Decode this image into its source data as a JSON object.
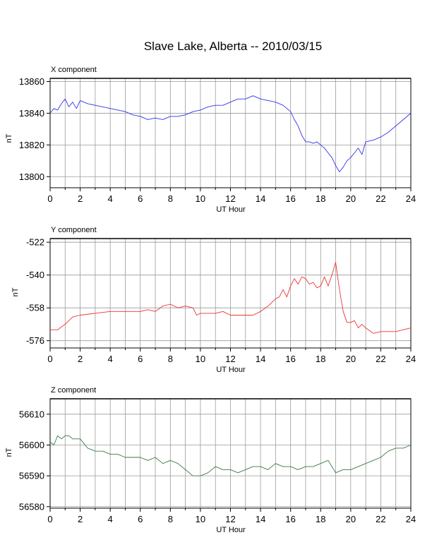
{
  "title": "Slave Lake, Alberta -- 2010/03/15",
  "chart_data": [
    {
      "type": "line",
      "panel_title": "X component",
      "xlabel": "UT Hour",
      "ylabel": "nT",
      "xlim": [
        0,
        24
      ],
      "ylim": [
        13793,
        13862
      ],
      "xticks": [
        0,
        2,
        4,
        6,
        8,
        10,
        12,
        14,
        16,
        18,
        20,
        22,
        24
      ],
      "yticks": [
        13800,
        13820,
        13840,
        13860
      ],
      "grid": true,
      "series_color": "#3333ee",
      "series": [
        {
          "x": [
            0,
            0.25,
            0.5,
            0.75,
            1,
            1.25,
            1.5,
            1.75,
            2,
            2.5,
            3,
            3.5,
            4,
            4.5,
            5,
            5.5,
            6,
            6.5,
            7,
            7.5,
            8,
            8.5,
            9,
            9.5,
            10,
            10.5,
            11,
            11.5,
            12,
            12.5,
            13,
            13.5,
            14,
            14.5,
            15,
            15.5,
            16,
            16.25,
            16.5,
            16.75,
            17,
            17.25,
            17.5,
            17.75,
            18,
            18.25,
            18.5,
            18.75,
            19,
            19.25,
            19.5,
            19.75,
            20,
            20.25,
            20.5,
            20.75,
            21,
            21.5,
            22,
            22.5,
            23,
            23.5,
            24
          ],
          "y": [
            13840,
            13843,
            13842,
            13846,
            13849,
            13844,
            13847,
            13843,
            13848,
            13846,
            13845,
            13844,
            13843,
            13842,
            13841,
            13839,
            13838,
            13836,
            13837,
            13836,
            13838,
            13838,
            13839,
            13841,
            13842,
            13844,
            13845,
            13845,
            13847,
            13849,
            13849,
            13851,
            13849,
            13848,
            13847,
            13845,
            13841,
            13836,
            13832,
            13826,
            13822,
            13822,
            13821,
            13822,
            13820,
            13818,
            13815,
            13812,
            13807,
            13803,
            13806,
            13810,
            13812,
            13815,
            13818,
            13814,
            13822,
            13823,
            13825,
            13828,
            13832,
            13836,
            13840
          ]
        }
      ]
    },
    {
      "type": "line",
      "panel_title": "Y component",
      "xlabel": "UT Hour",
      "ylabel": "nT",
      "xlim": [
        0,
        24
      ],
      "ylim": [
        -580,
        -520
      ],
      "xticks": [
        0,
        2,
        4,
        6,
        8,
        10,
        12,
        14,
        16,
        18,
        20,
        22,
        24
      ],
      "yticks": [
        -522,
        -540,
        -558,
        -576
      ],
      "grid": true,
      "series_color": "#ee3333",
      "series": [
        {
          "x": [
            0,
            0.5,
            1,
            1.5,
            2,
            3,
            4,
            5,
            5.5,
            6,
            6.5,
            7,
            7.5,
            8,
            8.5,
            9,
            9.5,
            9.75,
            10,
            10.5,
            11,
            11.5,
            12,
            12.5,
            13,
            13.5,
            14,
            14.5,
            15,
            15.25,
            15.5,
            15.75,
            16,
            16.25,
            16.5,
            16.75,
            17,
            17.25,
            17.5,
            17.75,
            18,
            18.25,
            18.5,
            18.75,
            19,
            19.25,
            19.5,
            19.75,
            20,
            20.25,
            20.5,
            20.75,
            21,
            21.5,
            22,
            22.5,
            23,
            23.5,
            24
          ],
          "y": [
            -570,
            -570,
            -567,
            -563,
            -562,
            -561,
            -560,
            -560,
            -560,
            -560,
            -559,
            -560,
            -557,
            -556,
            -558,
            -557,
            -558,
            -562,
            -561,
            -561,
            -561,
            -560,
            -562,
            -562,
            -562,
            -562,
            -560,
            -557,
            -553,
            -552,
            -548,
            -552,
            -546,
            -542,
            -545,
            -541,
            -542,
            -545,
            -544,
            -547,
            -546,
            -541,
            -546,
            -540,
            -533,
            -548,
            -560,
            -566,
            -566,
            -565,
            -569,
            -567,
            -569,
            -572,
            -571,
            -571,
            -571,
            -570,
            -569
          ]
        }
      ]
    },
    {
      "type": "line",
      "panel_title": "Z component",
      "xlabel": "UT Hour",
      "ylabel": "nT",
      "xlim": [
        0,
        24
      ],
      "ylim": [
        56579.5,
        56615
      ],
      "xticks": [
        0,
        2,
        4,
        6,
        8,
        10,
        12,
        14,
        16,
        18,
        20,
        22,
        24
      ],
      "yticks": [
        56580,
        56590,
        56600,
        56610
      ],
      "grid": true,
      "series_color": "#3a7a45",
      "series": [
        {
          "x": [
            0,
            0.25,
            0.5,
            0.75,
            1,
            1.25,
            1.5,
            1.75,
            2,
            2.5,
            3,
            3.5,
            4,
            4.5,
            5,
            5.5,
            6,
            6.5,
            7,
            7.5,
            8,
            8.5,
            9,
            9.5,
            10,
            10.5,
            11,
            11.5,
            12,
            12.5,
            13,
            13.5,
            14,
            14.5,
            15,
            15.5,
            16,
            16.5,
            17,
            17.5,
            18,
            18.5,
            18.75,
            19,
            19.5,
            20,
            20.5,
            21,
            21.5,
            22,
            22.5,
            23,
            23.5,
            24
          ],
          "y": [
            56601,
            56600,
            56603,
            56602,
            56603,
            56603,
            56602,
            56602,
            56602,
            56599,
            56598,
            56598,
            56597,
            56597,
            56596,
            56596,
            56596,
            56595,
            56596,
            56594,
            56595,
            56594,
            56592,
            56590,
            56590,
            56591,
            56593,
            56592,
            56592,
            56591,
            56592,
            56593,
            56593,
            56592,
            56594,
            56593,
            56593,
            56592,
            56593,
            56593,
            56594,
            56595,
            56593,
            56591,
            56592,
            56592,
            56593,
            56594,
            56595,
            56596,
            56598,
            56599,
            56599,
            56600
          ]
        }
      ]
    }
  ]
}
